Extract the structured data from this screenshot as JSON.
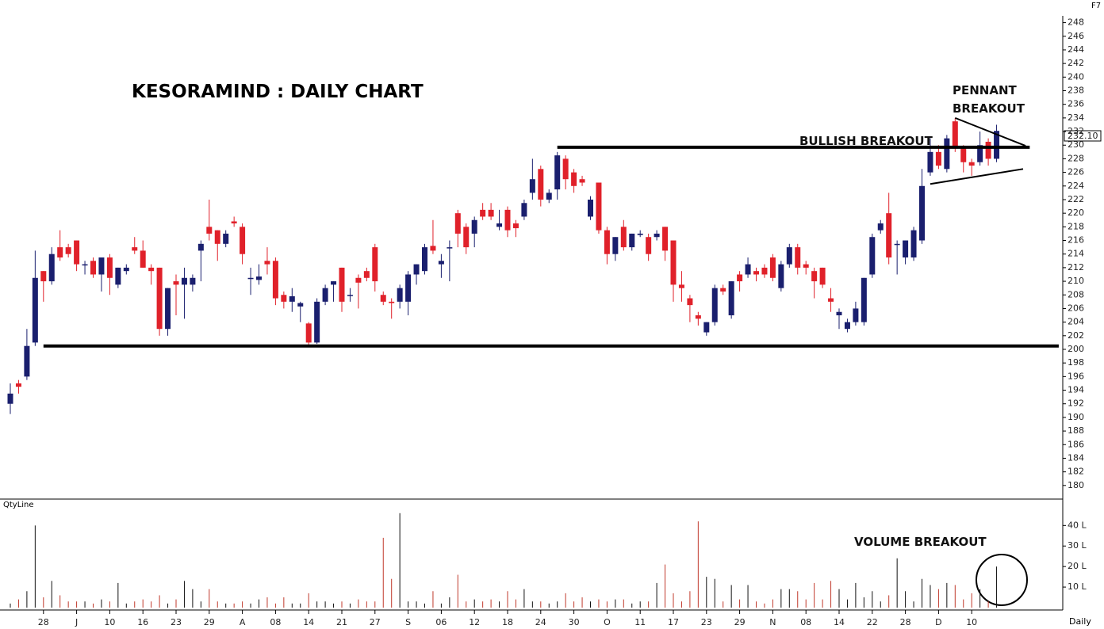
{
  "chart_data": {
    "type": "candlestick",
    "title": "KESORAMIND : DAILY CHART",
    "annotations": {
      "bullish": "BULLISH BREAKOUT",
      "pennant": [
        "PENNANT",
        "BREAKOUT"
      ],
      "volume": "VOLUME BREAKOUT",
      "volume_panel": "QtyLine",
      "period": "Daily",
      "key": "F7",
      "last_price": "232.10"
    },
    "up_color": "#1a1f6e",
    "down_color": "#e0212a",
    "categories": [
      null,
      null,
      null,
      null,
      "28",
      null,
      null,
      null,
      "J",
      null,
      null,
      null,
      "10",
      null,
      null,
      null,
      "16",
      null,
      null,
      null,
      "23",
      null,
      null,
      null,
      "29",
      null,
      null,
      null,
      "A",
      null,
      null,
      null,
      "08",
      null,
      null,
      null,
      "14",
      null,
      null,
      null,
      "21",
      null,
      null,
      null,
      "27",
      null,
      null,
      null,
      "S",
      null,
      null,
      null,
      "06",
      null,
      null,
      null,
      "12",
      null,
      null,
      null,
      "18",
      null,
      null,
      null,
      "24",
      null,
      null,
      null,
      "30",
      null,
      null,
      null,
      "O",
      null,
      null,
      null,
      "11",
      null,
      null,
      null,
      "17",
      null,
      null,
      null,
      "23",
      null,
      null,
      null,
      "29",
      null,
      null,
      null,
      "N",
      null,
      null,
      null,
      "08",
      null,
      null,
      null,
      "14",
      null,
      null,
      null,
      "22",
      null,
      null,
      null,
      "28",
      null,
      null,
      null,
      "D",
      null,
      null,
      null,
      "10",
      null,
      null,
      null
    ],
    "candles": [
      [
        192,
        195,
        190.5,
        193.5
      ],
      [
        195,
        195.5,
        193.5,
        194.5
      ],
      [
        196,
        203,
        195.5,
        200.5
      ],
      [
        201,
        214.5,
        200.5,
        210.5
      ],
      [
        211.5,
        211.5,
        207,
        210
      ],
      [
        210,
        215,
        209.5,
        214
      ],
      [
        215,
        217.5,
        213,
        213.5
      ],
      [
        215,
        215.5,
        213.5,
        214
      ],
      [
        216,
        216,
        211.5,
        212.5
      ],
      [
        212.5,
        213,
        211,
        212.5
      ],
      [
        213,
        213.5,
        210.5,
        211
      ],
      [
        211,
        213.5,
        208.5,
        213.5
      ],
      [
        213.5,
        214,
        208,
        210.5
      ],
      [
        209.5,
        212,
        209,
        212
      ],
      [
        211.5,
        212.5,
        211,
        212
      ],
      [
        215,
        216.5,
        214,
        214.5
      ],
      [
        214.5,
        216,
        212,
        212
      ],
      [
        212,
        212.5,
        209.5,
        211.5
      ],
      [
        212,
        212,
        202,
        203
      ],
      [
        203,
        209,
        202,
        209
      ],
      [
        210,
        211,
        205,
        209.5
      ],
      [
        209.5,
        212,
        204.5,
        210.5
      ],
      [
        209.5,
        211,
        208.5,
        210.5
      ],
      [
        214.5,
        216,
        210,
        215.5
      ],
      [
        218,
        222,
        216,
        217
      ],
      [
        217.5,
        217.5,
        213,
        215.5
      ],
      [
        215.5,
        217.5,
        215,
        217
      ],
      [
        218.8,
        219.5,
        218,
        218.5
      ],
      [
        218,
        218.5,
        212.5,
        214
      ],
      [
        210.5,
        212,
        208,
        210.5
      ],
      [
        210.2,
        212.5,
        209.5,
        210.7
      ],
      [
        213,
        215,
        211,
        212.5
      ],
      [
        213,
        213.5,
        206.5,
        207.5
      ],
      [
        208,
        208.5,
        206,
        207
      ],
      [
        207,
        209,
        205.5,
        207.8
      ],
      [
        206.3,
        207,
        204,
        206.8
      ],
      [
        203.8,
        204,
        200.5,
        201
      ],
      [
        201,
        207.5,
        200.8,
        207
      ],
      [
        207,
        209.5,
        206.5,
        209
      ],
      [
        209.5,
        210,
        207,
        210
      ],
      [
        212,
        212,
        205.5,
        207
      ],
      [
        208,
        209,
        207,
        208
      ],
      [
        210.5,
        211,
        206,
        209.8
      ],
      [
        211.5,
        212,
        210,
        210.5
      ],
      [
        215,
        215.5,
        208.5,
        210
      ],
      [
        208,
        208.5,
        206.5,
        207
      ],
      [
        207,
        207.5,
        204.5,
        206.8
      ],
      [
        207,
        209.5,
        206,
        209
      ],
      [
        207,
        211.5,
        205,
        211
      ],
      [
        211,
        212.5,
        209.5,
        212.5
      ],
      [
        211.5,
        215.5,
        211,
        215
      ],
      [
        215.2,
        219,
        214,
        214.5
      ],
      [
        212.5,
        214,
        210.5,
        213
      ],
      [
        215,
        216,
        210,
        215
      ],
      [
        220,
        220.5,
        215,
        217
      ],
      [
        218,
        218.5,
        214,
        215
      ],
      [
        217,
        219.5,
        215,
        219
      ],
      [
        220.5,
        221.5,
        219,
        219.5
      ],
      [
        220.5,
        221.5,
        219,
        219.5
      ],
      [
        218,
        220.5,
        217.5,
        218.5
      ],
      [
        220.5,
        221,
        216.5,
        217.5
      ],
      [
        218.5,
        219,
        216.5,
        217.8
      ],
      [
        219.5,
        222,
        219,
        221.5
      ],
      [
        223,
        228,
        222,
        225
      ],
      [
        226.5,
        227,
        221,
        222
      ],
      [
        222,
        223.5,
        221.5,
        223
      ],
      [
        223.5,
        229,
        222,
        228.5
      ],
      [
        228,
        228.5,
        223.5,
        225
      ],
      [
        226,
        226.5,
        223,
        224
      ],
      [
        225,
        225.5,
        224,
        224.5
      ],
      [
        219.5,
        222.5,
        219,
        222
      ],
      [
        224.5,
        224.5,
        217,
        217.5
      ],
      [
        217.5,
        218,
        212.5,
        214
      ],
      [
        214,
        216.5,
        213,
        216.5
      ],
      [
        218,
        219,
        214.5,
        215
      ],
      [
        215,
        217,
        214.5,
        217
      ],
      [
        216.8,
        217.5,
        216.5,
        217
      ],
      [
        216.5,
        217,
        213,
        214
      ],
      [
        216.5,
        217.5,
        216,
        217
      ],
      [
        218,
        218,
        213,
        214.5
      ],
      [
        216,
        216,
        207,
        209.5
      ],
      [
        209.5,
        211.5,
        207,
        209
      ],
      [
        207.5,
        208,
        204,
        206.5
      ],
      [
        205,
        205.5,
        203.5,
        204.5
      ],
      [
        202.5,
        204,
        202,
        204
      ],
      [
        204,
        209.5,
        203.5,
        209
      ],
      [
        209,
        209.5,
        208,
        208.5
      ],
      [
        205,
        210,
        204.5,
        210
      ],
      [
        211,
        211.5,
        208.5,
        210
      ],
      [
        211,
        213.5,
        210.5,
        212.5
      ],
      [
        211.5,
        212,
        210,
        211
      ],
      [
        212,
        212.5,
        210.5,
        211
      ],
      [
        213.5,
        214,
        210,
        210.5
      ],
      [
        209,
        213,
        208.5,
        212.5
      ],
      [
        212.5,
        215.5,
        212,
        215
      ],
      [
        215,
        215.5,
        211,
        212
      ],
      [
        212.5,
        213,
        211,
        212
      ],
      [
        211.5,
        212,
        207.5,
        210
      ],
      [
        212,
        212,
        209,
        209.5
      ],
      [
        207.5,
        209,
        205.5,
        207
      ],
      [
        205,
        206,
        203,
        205.5
      ],
      [
        203,
        204.5,
        202.5,
        204
      ],
      [
        204,
        207,
        203.5,
        206
      ],
      [
        204,
        210.5,
        203.5,
        210.5
      ],
      [
        211,
        217,
        210.5,
        216.5
      ],
      [
        217.5,
        219,
        217,
        218.5
      ],
      [
        220,
        223,
        212.5,
        213.5
      ],
      [
        215.5,
        216,
        211,
        215.5
      ],
      [
        213.5,
        216,
        212.5,
        216
      ],
      [
        213.5,
        218,
        213,
        217.5
      ],
      [
        216,
        226.5,
        215.5,
        224
      ],
      [
        226,
        231,
        225.5,
        229
      ],
      [
        229,
        230,
        226.5,
        227
      ],
      [
        226.5,
        231.5,
        226,
        231
      ],
      [
        233.5,
        234,
        229,
        229.5
      ],
      [
        229.5,
        230,
        226,
        227.5
      ],
      [
        227.5,
        228,
        225.5,
        227
      ],
      [
        227.5,
        232,
        227,
        230
      ],
      [
        230.5,
        231,
        227,
        228
      ],
      [
        228,
        233,
        227.5,
        232.1
      ]
    ],
    "volume": [
      2,
      4,
      8,
      40,
      5,
      13,
      6,
      3,
      3,
      3,
      2,
      4,
      3,
      12,
      2,
      3,
      4,
      3,
      6,
      2,
      4,
      13,
      9,
      3,
      9,
      3,
      2,
      2,
      3,
      2,
      4,
      5,
      2,
      5,
      2,
      2,
      7,
      3,
      3,
      2,
      3,
      2,
      4,
      3,
      3,
      34,
      14,
      46,
      3,
      3,
      2,
      8,
      2,
      5,
      16,
      3,
      4,
      3,
      4,
      3,
      8,
      4,
      9,
      3,
      3,
      2,
      3,
      7,
      3,
      5,
      3,
      4,
      3,
      4,
      4,
      2,
      3,
      3,
      12,
      21,
      7,
      3,
      8,
      42,
      15,
      14,
      3,
      11,
      4,
      11,
      3,
      2,
      4,
      9,
      9,
      8,
      4,
      12,
      4,
      13,
      9,
      4,
      12,
      5,
      8,
      3,
      6,
      24,
      8,
      3,
      14,
      11,
      9,
      12,
      11,
      4,
      7,
      9,
      3,
      20
    ],
    "ylim": [
      178,
      249
    ],
    "yticks": [
      180,
      182,
      184,
      186,
      188,
      190,
      192,
      194,
      196,
      198,
      200,
      202,
      204,
      206,
      208,
      210,
      212,
      214,
      216,
      218,
      220,
      222,
      224,
      226,
      228,
      230,
      232,
      234,
      236,
      238,
      240,
      242,
      244,
      246,
      248
    ],
    "y2lim": [
      0,
      49
    ],
    "y2ticks": [
      {
        "value": 10,
        "label": "10 L"
      },
      {
        "value": 20,
        "label": "20 L"
      },
      {
        "value": 30,
        "label": "30 L"
      },
      {
        "value": 40,
        "label": "40 L"
      }
    ],
    "trend_lines": [
      {
        "x": [
          4,
          126.5
        ],
        "y": [
          200.5,
          200.5
        ]
      },
      {
        "x": [
          66,
          123
        ],
        "y": [
          229.7,
          229.7
        ]
      },
      {
        "x": [
          111,
          122.2
        ],
        "y": [
          224.3,
          226.5
        ]
      },
      {
        "x": [
          114,
          122.5
        ],
        "y": [
          234,
          229.9
        ]
      }
    ]
  }
}
